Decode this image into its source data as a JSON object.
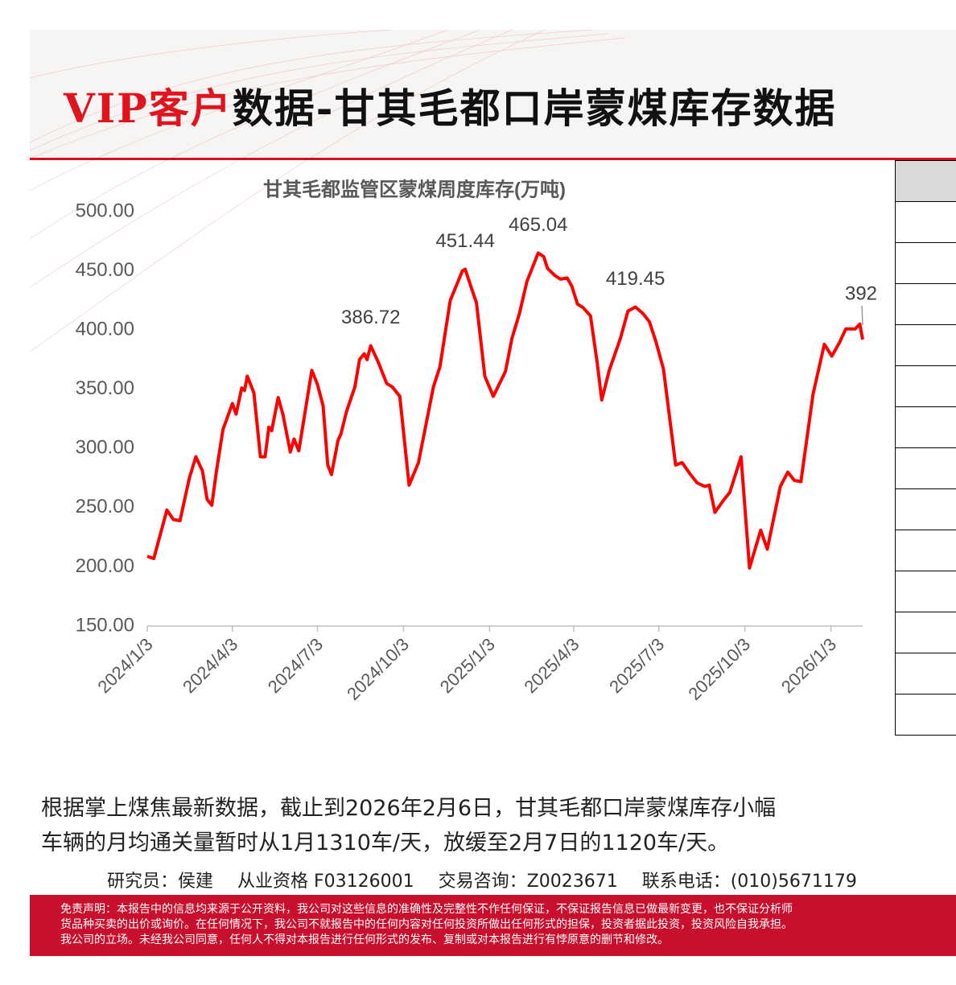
{
  "header": {
    "title_highlight": "VIP客户",
    "title_rest": "数据-甘其毛都口岸蒙煤库存数据"
  },
  "chart_data": {
    "type": "line",
    "title": "甘其毛都监管区蒙煤周度库存(万吨)",
    "color": "#ff0000",
    "x": [
      "2024/1/3",
      "2024/1/10",
      "2024/1/24",
      "2024/1/31",
      "2024/2/7",
      "2024/2/17",
      "2024/2/24",
      "2024/3/2",
      "2024/3/7",
      "2024/3/12",
      "2024/3/17",
      "2024/3/24",
      "2024/4/3",
      "2024/4/7",
      "2024/4/13",
      "2024/4/16",
      "2024/4/19",
      "2024/4/26",
      "2024/5/3",
      "2024/5/8",
      "2024/5/12",
      "2024/5/15",
      "2024/5/22",
      "2024/5/27",
      "2024/6/4",
      "2024/6/8",
      "2024/6/13",
      "2024/6/27",
      "2024/7/3",
      "2024/7/9",
      "2024/7/14",
      "2024/7/18",
      "2024/7/25",
      "2024/7/28",
      "2024/8/3",
      "2024/8/12",
      "2024/8/17",
      "2024/8/22",
      "2024/8/25",
      "2024/8/29",
      "2024/9/6",
      "2024/9/15",
      "2024/9/21",
      "2024/9/29",
      "2024/10/9",
      "2024/10/19",
      "2024/11/4",
      "2024/11/11",
      "2024/11/22",
      "2024/12/5",
      "2024/12/8",
      "2024/12/14",
      "2024/12/20",
      "2024/12/29",
      "2025/1/7",
      "2025/1/20",
      "2025/1/27",
      "2025/2/4",
      "2025/2/12",
      "2025/2/24",
      "2025/3/2",
      "2025/3/6",
      "2025/3/14",
      "2025/3/20",
      "2025/3/27",
      "2025/4/1",
      "2025/4/7",
      "2025/4/13",
      "2025/4/21",
      "2025/4/28",
      "2025/5/3",
      "2025/5/11",
      "2025/5/23",
      "2025/5/31",
      "2025/6/8",
      "2025/6/16",
      "2025/6/23",
      "2025/6/30",
      "2025/7/8",
      "2025/7/21",
      "2025/7/28",
      "2025/8/5",
      "2025/8/13",
      "2025/8/21",
      "2025/8/26",
      "2025/9/1",
      "2025/9/10",
      "2025/9/17",
      "2025/9/29",
      "2025/10/8",
      "2025/10/20",
      "2025/10/27",
      "2025/11/10",
      "2025/11/18",
      "2025/11/25",
      "2025/12/2",
      "2025/12/15",
      "2025/12/27",
      "2026/1/4",
      "2026/1/12",
      "2026/1/19",
      "2026/1/29",
      "2026/2/3",
      "2026/2/6"
    ],
    "values": [
      209,
      207,
      248,
      240,
      239,
      275,
      293,
      281,
      257,
      252,
      281,
      316,
      338,
      329,
      351,
      349,
      361,
      347,
      293,
      293,
      318,
      315,
      343,
      329,
      297,
      308,
      298,
      366,
      354,
      336,
      286,
      278,
      307,
      312,
      331,
      352,
      375,
      380,
      375,
      386.72,
      373,
      355,
      352,
      344,
      269,
      288,
      352,
      369,
      425,
      450,
      451.44,
      437,
      423,
      361,
      344,
      365,
      393,
      414,
      441,
      465.04,
      462,
      452,
      446,
      443,
      444,
      437,
      422,
      419,
      412,
      373,
      341,
      366,
      393,
      416,
      419.45,
      414,
      407,
      390,
      367,
      286,
      288,
      279,
      271,
      268,
      269,
      246,
      256,
      263,
      293,
      199,
      231,
      215,
      268,
      280,
      273,
      272,
      346,
      388,
      378,
      389,
      401,
      401,
      405,
      392
    ],
    "annotations": [
      {
        "x": "2024/8/29",
        "value": 386.72
      },
      {
        "x": "2024/12/8",
        "value": 451.44
      },
      {
        "x": "2025/2/24",
        "value": 465.04
      },
      {
        "x": "2025/6/8",
        "value": 419.45
      },
      {
        "x": "2026/2/6",
        "value": 392
      }
    ],
    "xlim": [
      "2024/1/3",
      "2026/2/6"
    ],
    "xticks": [
      "2024/1/3",
      "2024/4/3",
      "2024/7/3",
      "2024/10/3",
      "2025/1/3",
      "2025/4/3",
      "2025/7/3",
      "2025/10/3",
      "2026/1/3"
    ],
    "ylim": [
      150,
      500
    ],
    "yticks": [
      {
        "value": 150,
        "label": "150.00"
      },
      {
        "value": 200,
        "label": "200.00"
      },
      {
        "value": 250,
        "label": "250.00"
      },
      {
        "value": 300,
        "label": "300.00"
      },
      {
        "value": 350,
        "label": "350.00"
      },
      {
        "value": 400,
        "label": "400.00"
      },
      {
        "value": 450,
        "label": "450.00"
      },
      {
        "value": 500,
        "label": "500.00"
      }
    ],
    "grid": false
  },
  "text": {
    "lines": [
      "根据掌上煤焦最新数据，截止到2026年2月6日，甘其毛都口岸蒙煤库存小幅",
      "车辆的月均通关量暂时从1月1310车/天，放缓至2月7日的1120车/天。"
    ],
    "contact": [
      "研究员：侯建",
      "从业资格 F03126001",
      "交易咨询：Z0023671",
      "联系电话：(010)5671179"
    ]
  },
  "footer": {
    "lines": [
      "免责声明：本报告中的信息均来源于公开资料，我公司对这些信息的准确性及完整性不作任何保证，不保证报告信息已做最新变更，也不保证分析师",
      "货品种买卖的出价或询价。在任何情况下，我公司不就报告中的任何内容对任何投资所做出任何形式的担保，投资者据此投资，投资风险自我承担。",
      "我公司的立场。未经我公司同意，任何人不得对本报告进行任何形式的发布、复制或对本报告进行有悖原意的删节和修改。"
    ]
  }
}
